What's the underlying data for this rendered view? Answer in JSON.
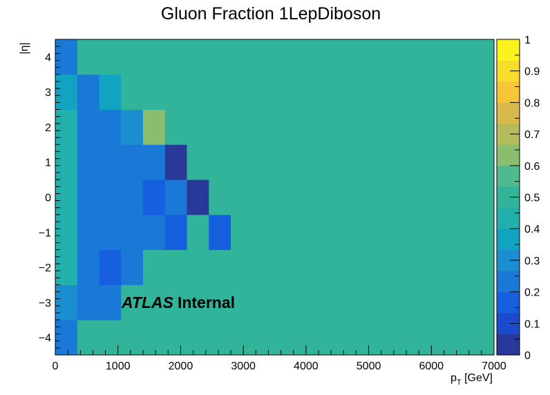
{
  "chart_data": {
    "type": "heatmap",
    "title": "Gluon Fraction 1LepDiboson",
    "xlabel_main": "p",
    "xlabel_sub": "T",
    "xlabel_unit": " [GeV]",
    "ylabel": "|η|",
    "atlas_bold": "ATLAS",
    "atlas_rest": "Internal",
    "xlim": [
      0,
      7000
    ],
    "ylim": [
      -4.5,
      4.5
    ],
    "zlim": [
      0,
      1
    ],
    "x_edges": [
      0,
      350,
      700,
      1050,
      1400,
      1750,
      2100,
      2450,
      2800,
      7000
    ],
    "y_edges": [
      -4.5,
      -3.5,
      -2.5,
      -1.5,
      -0.5,
      0.5,
      1.5,
      2.5,
      3.5,
      4.5
    ],
    "background_value": 0.5,
    "cell_values": [
      [
        0.25,
        0.5,
        0.5,
        0.5,
        0.5,
        0.5,
        0.5,
        0.5,
        0.5
      ],
      [
        0.3,
        0.2,
        0.25,
        0.5,
        0.5,
        0.5,
        0.5,
        0.5,
        0.5
      ],
      [
        0.4,
        0.25,
        0.15,
        0.2,
        0.5,
        0.5,
        0.5,
        0.5,
        0.5
      ],
      [
        0.4,
        0.25,
        0.2,
        0.25,
        0.2,
        0.15,
        0.5,
        0.15,
        0.5
      ],
      [
        0.4,
        0.25,
        0.25,
        0.2,
        0.15,
        0.2,
        0.05,
        0.5,
        0.5
      ],
      [
        0.4,
        0.25,
        0.25,
        0.25,
        0.2,
        0.05,
        0.5,
        0.5,
        0.5
      ],
      [
        0.45,
        0.2,
        0.25,
        0.3,
        0.6,
        0.5,
        0.5,
        0.5,
        0.5
      ],
      [
        0.35,
        0.25,
        0.35,
        0.5,
        0.5,
        0.5,
        0.5,
        0.5,
        0.5
      ],
      [
        0.25,
        0.5,
        0.5,
        0.5,
        0.5,
        0.5,
        0.5,
        0.5,
        0.5
      ]
    ],
    "x_ticks": [
      0,
      1000,
      2000,
      3000,
      4000,
      5000,
      6000,
      7000
    ],
    "x_tick_labels": [
      "0",
      "1000",
      "2000",
      "3000",
      "4000",
      "5000",
      "6000",
      "7000"
    ],
    "y_ticks": [
      -4,
      -3,
      -2,
      -1,
      0,
      1,
      2,
      3,
      4
    ],
    "y_tick_labels": [
      "−4",
      "−3",
      "−2",
      "−1",
      "0",
      "1",
      "2",
      "3",
      "4"
    ],
    "z_ticks": [
      0,
      0.1,
      0.2,
      0.3,
      0.4,
      0.5,
      0.6,
      0.7,
      0.8,
      0.9,
      1
    ],
    "z_tick_labels": [
      "0",
      "0.1",
      "0.2",
      "0.3",
      "0.4",
      "0.5",
      "0.6",
      "0.7",
      "0.8",
      "0.9",
      "1"
    ],
    "palette": [
      "#28399a",
      "#1b4bcc",
      "#1660e0",
      "#1a78d6",
      "#1b8ed0",
      "#12a3c2",
      "#22b0ac",
      "#31b49a",
      "#4fba8f",
      "#8bbd6e",
      "#b3bb5c",
      "#d9b94c",
      "#f6c638",
      "#f8dc2a",
      "#fbf21e"
    ],
    "grid": false,
    "colorbar": "right"
  }
}
